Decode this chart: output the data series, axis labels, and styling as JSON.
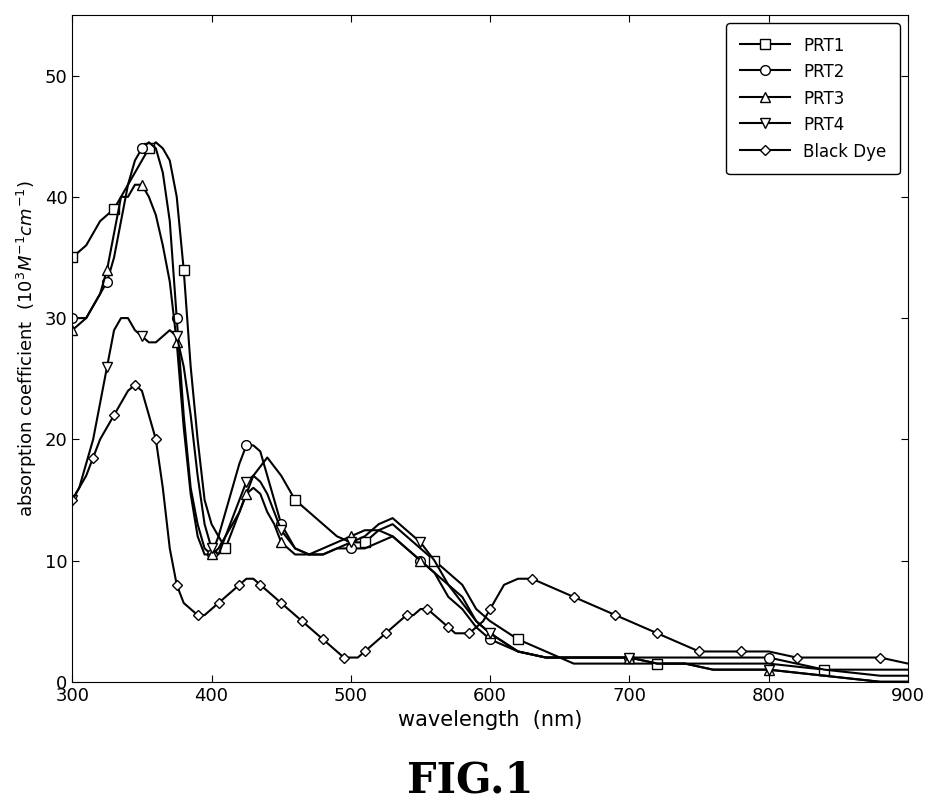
{
  "title": "FIG.1",
  "xlabel": "wavelength  (nm)",
  "xlim": [
    300,
    900
  ],
  "ylim": [
    0,
    55
  ],
  "yticks": [
    0,
    10,
    20,
    30,
    40,
    50
  ],
  "xticks": [
    300,
    400,
    500,
    600,
    700,
    800,
    900
  ],
  "series": {
    "PRT1": {
      "marker": "s",
      "x": [
        300,
        310,
        315,
        320,
        325,
        330,
        335,
        340,
        345,
        350,
        355,
        360,
        365,
        370,
        375,
        380,
        385,
        390,
        395,
        400,
        410,
        420,
        430,
        440,
        450,
        460,
        470,
        480,
        490,
        500,
        510,
        520,
        530,
        540,
        550,
        560,
        570,
        580,
        590,
        600,
        620,
        640,
        660,
        680,
        700,
        720,
        740,
        760,
        780,
        800,
        840,
        880,
        900
      ],
      "y": [
        35,
        36,
        37,
        38,
        38.5,
        39,
        40,
        41,
        42,
        43,
        44,
        44.5,
        44,
        43,
        40,
        34,
        26,
        20,
        15,
        13,
        11,
        14,
        17,
        18.5,
        17,
        15,
        14,
        13,
        12,
        11.5,
        11.5,
        12.5,
        13,
        12,
        11,
        10,
        9,
        8,
        6,
        5,
        3.5,
        2.5,
        1.5,
        1.5,
        1.5,
        1.5,
        1.5,
        1.5,
        1.5,
        1.5,
        1,
        1,
        1
      ]
    },
    "PRT2": {
      "marker": "o",
      "x": [
        300,
        305,
        310,
        315,
        320,
        325,
        330,
        335,
        340,
        345,
        350,
        355,
        360,
        365,
        370,
        375,
        380,
        385,
        390,
        395,
        400,
        405,
        410,
        415,
        420,
        425,
        430,
        435,
        440,
        445,
        450,
        460,
        470,
        480,
        490,
        500,
        510,
        520,
        530,
        540,
        550,
        560,
        570,
        580,
        590,
        600,
        620,
        640,
        660,
        680,
        700,
        720,
        740,
        760,
        780,
        800,
        840,
        880,
        900
      ],
      "y": [
        30,
        30,
        30,
        31,
        32,
        33,
        35,
        38,
        41,
        43,
        44,
        44.5,
        44,
        42,
        38,
        30,
        22,
        16,
        13,
        11,
        10.5,
        12,
        14,
        16,
        18,
        19.5,
        19.5,
        19,
        17,
        15,
        13,
        11,
        10.5,
        10.5,
        11,
        11,
        11,
        11.5,
        12,
        11,
        10,
        9,
        7,
        6,
        4.5,
        3.5,
        2.5,
        2,
        2,
        2,
        2,
        2,
        2,
        2,
        2,
        2,
        1,
        0.5,
        0.5
      ]
    },
    "PRT3": {
      "marker": "^",
      "x": [
        300,
        305,
        310,
        315,
        320,
        325,
        330,
        335,
        340,
        345,
        350,
        355,
        360,
        365,
        370,
        375,
        380,
        385,
        390,
        395,
        400,
        405,
        410,
        415,
        420,
        425,
        430,
        435,
        440,
        445,
        450,
        460,
        470,
        480,
        490,
        500,
        510,
        520,
        530,
        540,
        550,
        560,
        570,
        580,
        590,
        600,
        620,
        640,
        660,
        680,
        700,
        720,
        740,
        760,
        780,
        800,
        840,
        880,
        900
      ],
      "y": [
        29,
        29.5,
        30,
        31,
        32,
        34,
        37,
        40,
        40,
        41,
        41,
        40,
        38.5,
        36,
        33,
        28,
        21,
        15.5,
        12,
        10.5,
        10.5,
        11,
        12,
        13,
        14,
        15.5,
        16,
        15.5,
        14,
        13,
        11.5,
        10.5,
        10.5,
        11,
        11.5,
        12,
        12.5,
        12.5,
        12,
        11,
        10,
        9,
        8,
        7,
        5,
        4,
        2.5,
        2,
        2,
        2,
        2,
        1.5,
        1.5,
        1,
        1,
        1,
        0.5,
        0,
        0
      ]
    },
    "PRT4": {
      "marker": "v",
      "x": [
        300,
        305,
        310,
        315,
        320,
        325,
        330,
        335,
        340,
        345,
        350,
        355,
        360,
        365,
        370,
        375,
        380,
        385,
        390,
        395,
        400,
        405,
        410,
        415,
        420,
        425,
        430,
        435,
        440,
        445,
        450,
        460,
        470,
        480,
        490,
        500,
        510,
        520,
        530,
        540,
        550,
        560,
        570,
        580,
        590,
        600,
        620,
        640,
        660,
        680,
        700,
        720,
        740,
        760,
        780,
        800,
        840,
        880,
        900
      ],
      "y": [
        15,
        16,
        18,
        20,
        23,
        26,
        29,
        30,
        30,
        29,
        28.5,
        28,
        28,
        28.5,
        29,
        28.5,
        26,
        22,
        17,
        13,
        11,
        10.5,
        12,
        13.5,
        15,
        16.5,
        17,
        16.5,
        15.5,
        14,
        12.5,
        11,
        10.5,
        10.5,
        11,
        11.5,
        12,
        13,
        13.5,
        12.5,
        11.5,
        10,
        8,
        6.5,
        5,
        4,
        2.5,
        2,
        2,
        2,
        2,
        1.5,
        1.5,
        1,
        1,
        1,
        0.5,
        0,
        0
      ]
    },
    "Black Dye": {
      "marker": "D",
      "x": [
        300,
        305,
        310,
        315,
        320,
        325,
        330,
        335,
        340,
        345,
        350,
        355,
        360,
        365,
        370,
        375,
        380,
        385,
        390,
        395,
        400,
        405,
        410,
        415,
        420,
        425,
        430,
        435,
        440,
        445,
        450,
        455,
        460,
        465,
        470,
        475,
        480,
        485,
        490,
        495,
        500,
        505,
        510,
        515,
        520,
        525,
        530,
        535,
        540,
        545,
        550,
        555,
        560,
        565,
        570,
        575,
        580,
        585,
        590,
        595,
        600,
        610,
        620,
        630,
        640,
        650,
        660,
        670,
        680,
        690,
        700,
        710,
        720,
        730,
        740,
        750,
        760,
        770,
        780,
        790,
        800,
        820,
        840,
        860,
        880,
        900
      ],
      "y": [
        15,
        16,
        17,
        18.5,
        20,
        21,
        22,
        23,
        24,
        24.5,
        24,
        22,
        20,
        16,
        11,
        8,
        6.5,
        6,
        5.5,
        5.5,
        6,
        6.5,
        7,
        7.5,
        8,
        8.5,
        8.5,
        8,
        7.5,
        7,
        6.5,
        6,
        5.5,
        5,
        4.5,
        4,
        3.5,
        3,
        2.5,
        2,
        2,
        2,
        2.5,
        3,
        3.5,
        4,
        4.5,
        5,
        5.5,
        5.5,
        6,
        6,
        5.5,
        5,
        4.5,
        4,
        4,
        4,
        4.5,
        5,
        6,
        8,
        8.5,
        8.5,
        8,
        7.5,
        7,
        6.5,
        6,
        5.5,
        5,
        4.5,
        4,
        3.5,
        3,
        2.5,
        2.5,
        2.5,
        2.5,
        2.5,
        2.5,
        2,
        2,
        2,
        2,
        1.5
      ]
    }
  },
  "legend_order": [
    "PRT1",
    "PRT2",
    "PRT3",
    "PRT4",
    "Black Dye"
  ],
  "linewidth": 1.5
}
